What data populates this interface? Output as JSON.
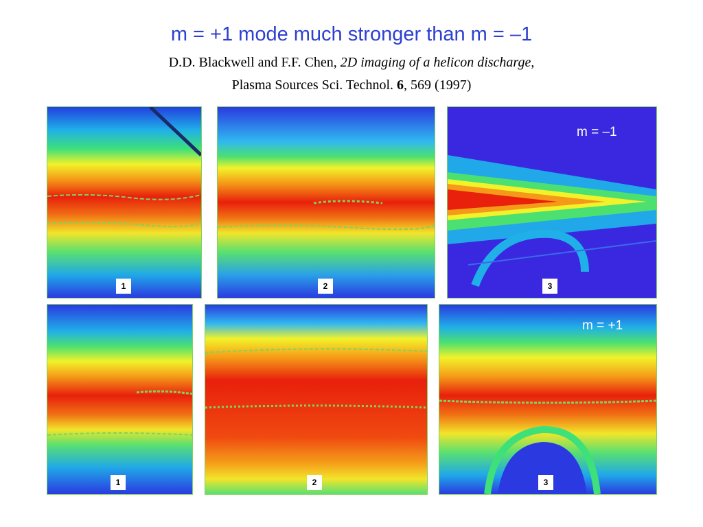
{
  "title": "m = +1 mode much stronger than m = –1",
  "reference": {
    "authors": "D.D. Blackwell and F.F. Chen, ",
    "paper_title": "2D imaging of a helicon discharge",
    "comma": ",",
    "journal": "Plasma Sources Sci. Technol. ",
    "volume": "6",
    "pages_year": ", 569 (1997)"
  },
  "rows": {
    "top": {
      "mode_label": "m = –1",
      "panels": [
        {
          "label": "1"
        },
        {
          "label": "2"
        },
        {
          "label": "3"
        }
      ]
    },
    "bottom": {
      "mode_label": "m = +1",
      "panels": [
        {
          "label": "1"
        },
        {
          "label": "2"
        },
        {
          "label": "3"
        }
      ]
    }
  },
  "colors": {
    "title": "#2f3fd0",
    "plasma_core": "#e8200c",
    "plasma_edge": "#2a3fe8",
    "contour": "#7fd35f"
  }
}
